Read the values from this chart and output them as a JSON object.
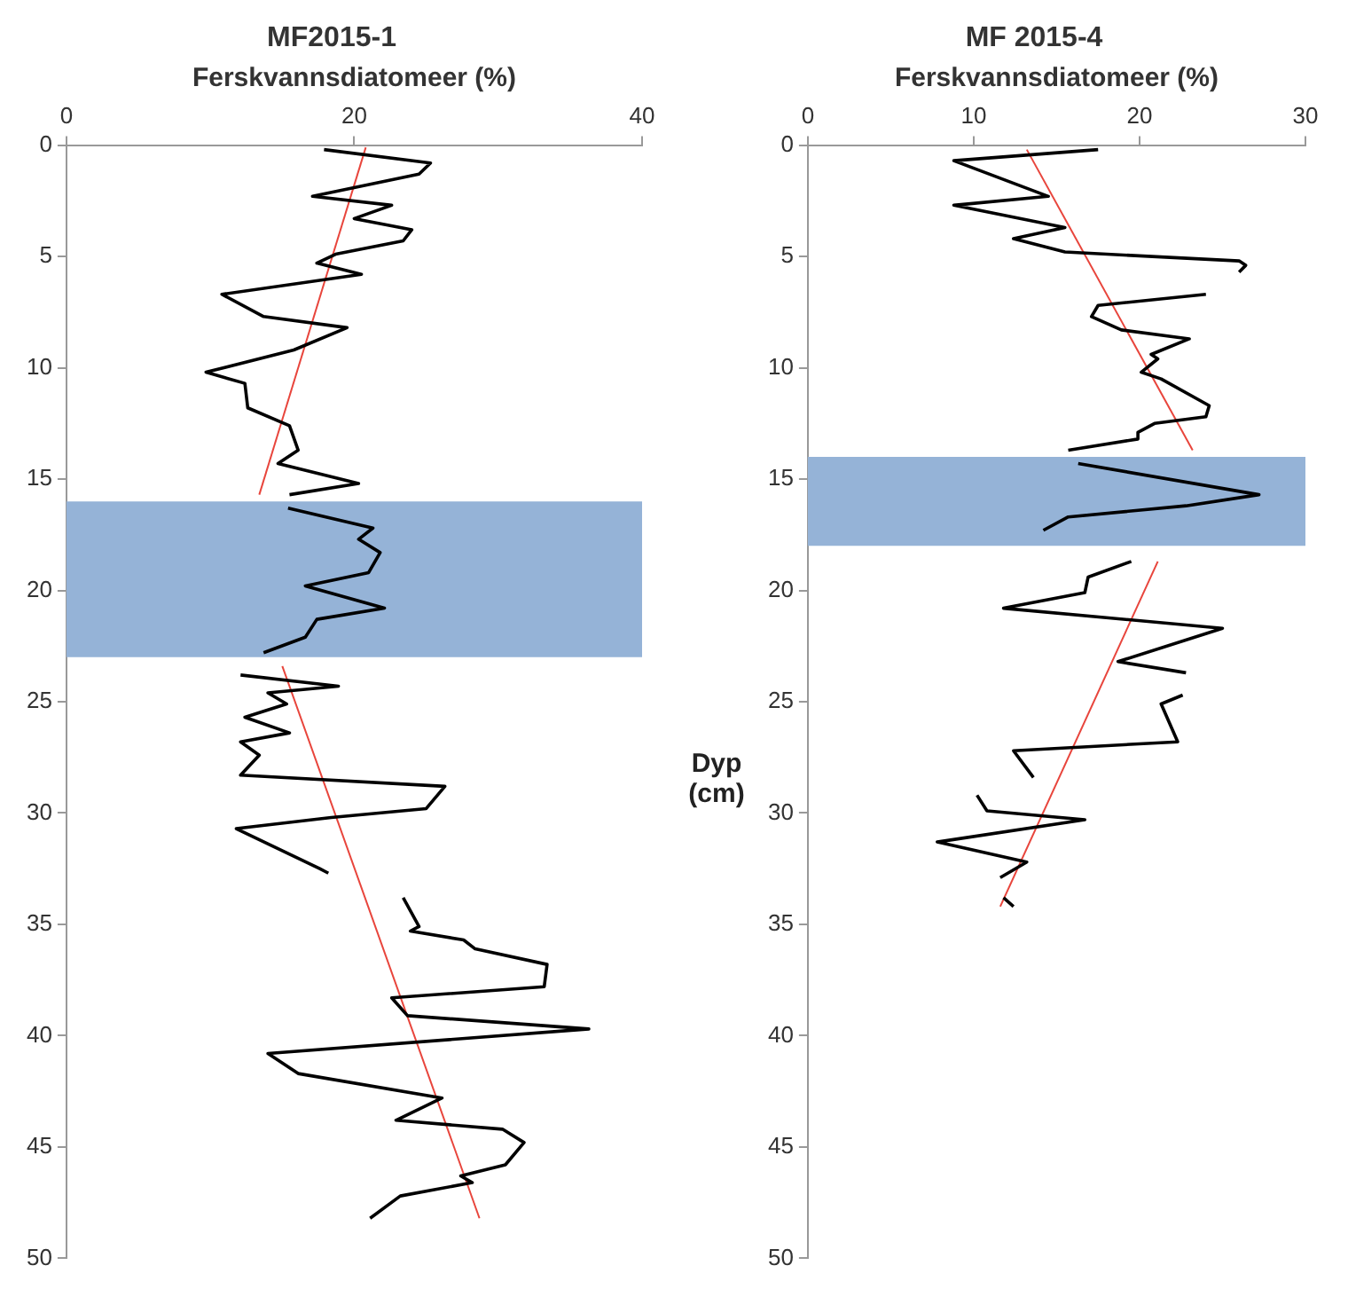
{
  "chart_data": [
    {
      "type": "line",
      "title": "MF2015-1",
      "xlabel": "Ferskvannsdiatomeer (%)",
      "xlim": [
        0,
        40
      ],
      "xticks": [
        0,
        20,
        40
      ],
      "ylim": [
        50,
        0
      ],
      "yticks": [
        0,
        5,
        10,
        15,
        20,
        25,
        30,
        35,
        40,
        45,
        50
      ],
      "grid": false,
      "legend": false,
      "marker": "none",
      "bands": [
        {
          "axis": "y",
          "from": 16,
          "to": 23,
          "color": "#95b3d7"
        }
      ],
      "series": [
        {
          "color": "#000000",
          "x": [
            17.9,
            25.3,
            24.5,
            17.1,
            22.6,
            20,
            24,
            23.4,
            18.7,
            17.4,
            20.5,
            10.8,
            13.7,
            19.5,
            15.8,
            9.7,
            12.4,
            12.6,
            15.5,
            16.1,
            14.7,
            20.3,
            15.5,
            null,
            15.4,
            21.3,
            20.3,
            21.8,
            21,
            16.6,
            22.1,
            17.4,
            16.6,
            13.7,
            null,
            12.1,
            18.9,
            14,
            15.3,
            12.4,
            15.5,
            12.1,
            13.4,
            12.1,
            26.3,
            25,
            18.4,
            11.8,
            17.6,
            18.2,
            null,
            23.4,
            24.5,
            23.9,
            27.6,
            28.4,
            33.4,
            33.2,
            22.6,
            23.7,
            36.3,
            14,
            16.1,
            26.1,
            22.9,
            30.3,
            31.8,
            30.5,
            27.4,
            28.2,
            23.2,
            21.1
          ],
          "values": [
            0.2,
            0.8,
            1.3,
            2.3,
            2.7,
            3.3,
            3.8,
            4.3,
            4.9,
            5.3,
            5.8,
            6.7,
            7.7,
            8.2,
            9.2,
            10.2,
            10.7,
            11.8,
            12.6,
            13.7,
            14.3,
            15.2,
            15.7,
            null,
            16.3,
            17.2,
            17.7,
            18.3,
            19.2,
            19.8,
            20.8,
            21.3,
            22.1,
            22.8,
            null,
            23.8,
            24.3,
            24.6,
            25.1,
            25.7,
            26.4,
            26.8,
            27.4,
            28.3,
            28.8,
            29.8,
            30.2,
            30.7,
            32.5,
            32.7,
            null,
            33.8,
            35.1,
            35.3,
            35.7,
            36.1,
            36.8,
            37.8,
            38.3,
            39.1,
            39.7,
            40.8,
            41.7,
            42.8,
            43.8,
            44.2,
            44.8,
            45.8,
            46.3,
            46.6,
            47.2,
            48.2
          ]
        },
        {
          "type": "line",
          "color": "#e8453c",
          "x": [
            20.8,
            13.4
          ],
          "values": [
            0.1,
            15.7
          ]
        },
        {
          "type": "line",
          "color": "#e8453c",
          "x": [
            15,
            28.7
          ],
          "values": [
            23.4,
            48.2
          ]
        }
      ]
    },
    {
      "type": "line",
      "title": "MF 2015-4",
      "xlabel": "Ferskvannsdiatomeer (%)",
      "ylabel": "Dyp (cm)",
      "xlim": [
        0,
        30
      ],
      "xticks": [
        0,
        10,
        20,
        30
      ],
      "ylim": [
        50,
        0
      ],
      "yticks": [
        0,
        5,
        10,
        15,
        20,
        25,
        30,
        35,
        40,
        45,
        50
      ],
      "grid": false,
      "legend": false,
      "marker": "none",
      "bands": [
        {
          "axis": "y",
          "from": 14,
          "to": 18,
          "color": "#95b3d7"
        }
      ],
      "series": [
        {
          "color": "#000000",
          "x": [
            17.5,
            8.8,
            14.5,
            8.8,
            15.5,
            12.4,
            15.5,
            26,
            26.4,
            26,
            null,
            24,
            17.5,
            17.1,
            18.9,
            23,
            20.7,
            21.1,
            20.1,
            21.3,
            24.2,
            24,
            20.9,
            19.9,
            19.9,
            15.7,
            null,
            16.3,
            27.2,
            22.8,
            15.7,
            14.2,
            null,
            19.5,
            16.9,
            16.7,
            11.8,
            25,
            18.7,
            22.8,
            null,
            22.6,
            21.3,
            22.3,
            12.4,
            13.6,
            null,
            10.2,
            10.8,
            16.7,
            7.8,
            13.2,
            11.6,
            null,
            11.8,
            12.4
          ],
          "values": [
            0.2,
            0.7,
            2.3,
            2.7,
            3.7,
            4.2,
            4.8,
            5.2,
            5.4,
            5.7,
            null,
            6.7,
            7.2,
            7.7,
            8.3,
            8.7,
            9.4,
            9.6,
            10.2,
            10.5,
            11.7,
            12.2,
            12.5,
            12.9,
            13.2,
            13.7,
            null,
            14.3,
            15.7,
            16.2,
            16.7,
            17.3,
            null,
            18.7,
            19.4,
            20.1,
            20.8,
            21.7,
            23.2,
            23.7,
            null,
            24.7,
            25.1,
            26.8,
            27.2,
            28.4,
            null,
            29.2,
            29.9,
            30.3,
            31.3,
            32.2,
            32.9,
            null,
            33.8,
            34.2
          ]
        },
        {
          "type": "line",
          "color": "#e8453c",
          "x": [
            13.2,
            23.2
          ],
          "values": [
            0.2,
            13.7
          ]
        },
        {
          "type": "line",
          "color": "#e8453c",
          "x": [
            21.1,
            11.6
          ],
          "values": [
            18.7,
            34.2
          ]
        }
      ]
    }
  ]
}
